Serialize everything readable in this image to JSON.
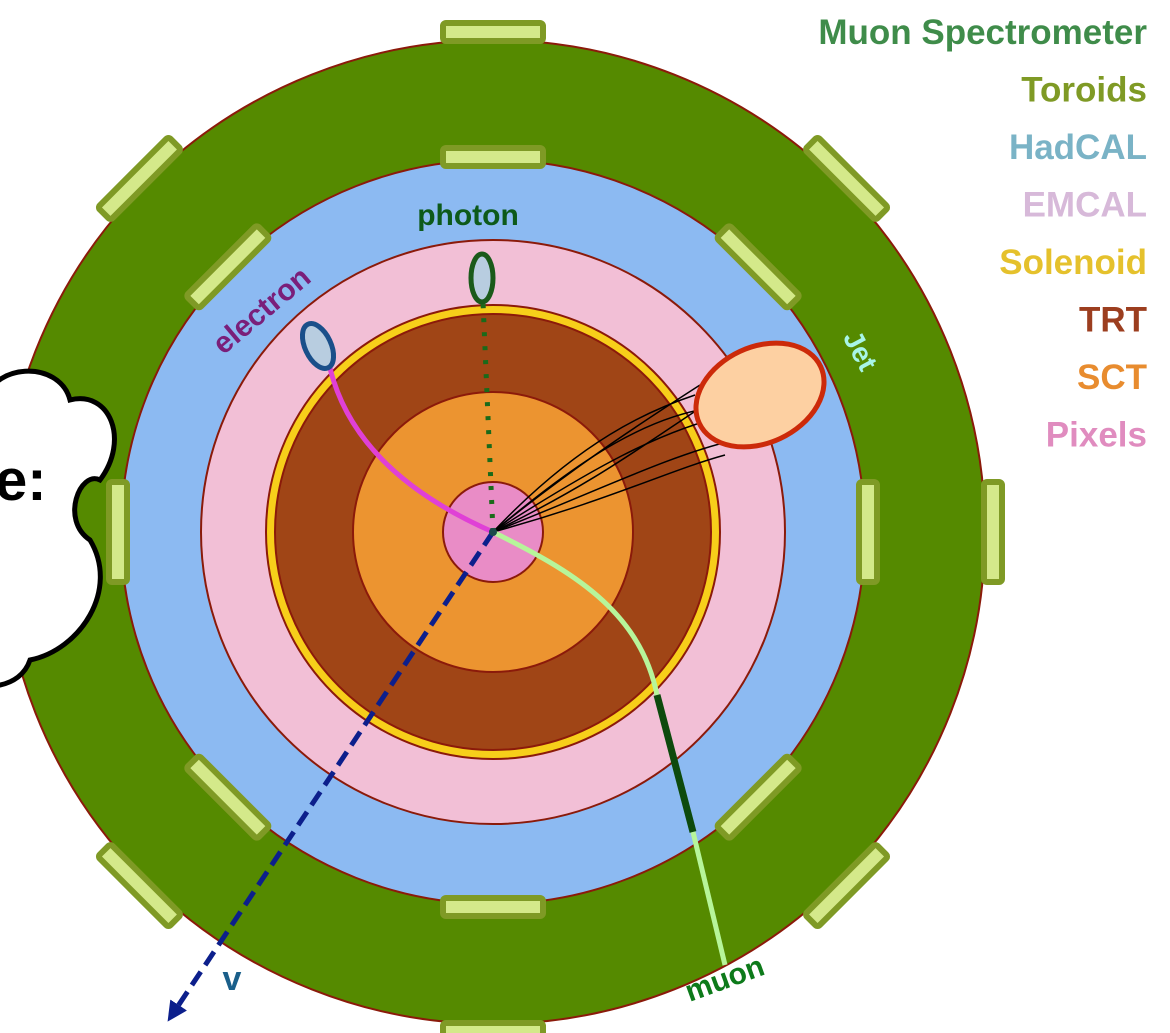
{
  "legend": [
    "Muon Spectrometer",
    "Toroids",
    "HadCAL",
    "EMCAL",
    "Solenoid",
    "TRT",
    "SCT",
    "Pixels"
  ],
  "particles": {
    "photon": "photon",
    "electron": "electron",
    "jet": "Jet",
    "muon": "muon",
    "neutrino": "v"
  },
  "cloud_text": "e:"
}
